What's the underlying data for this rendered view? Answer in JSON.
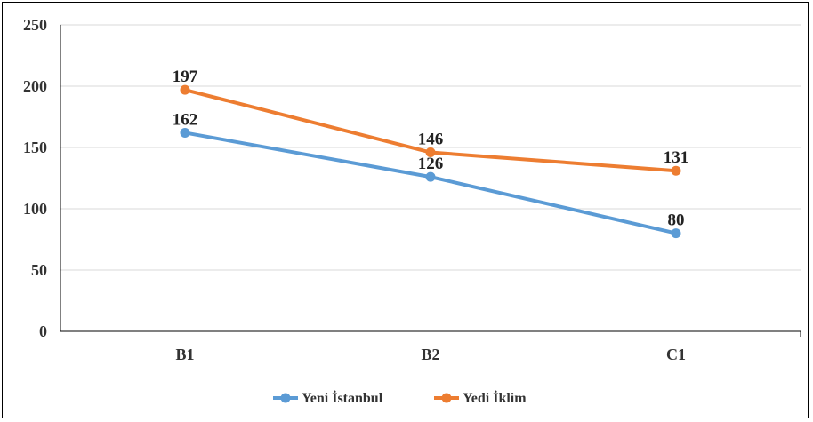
{
  "chart_data": {
    "type": "line",
    "categories": [
      "B1",
      "B2",
      "C1"
    ],
    "series": [
      {
        "name": "Yeni İstanbul",
        "values": [
          162,
          126,
          80
        ],
        "color": "#5B9BD5"
      },
      {
        "name": "Yedi İklim",
        "values": [
          197,
          146,
          131
        ],
        "color": "#ED7D31"
      }
    ],
    "ylim": [
      0,
      250
    ],
    "yticks": [
      0,
      50,
      100,
      150,
      200,
      250
    ],
    "grid": true,
    "legend": "bottom-center"
  }
}
